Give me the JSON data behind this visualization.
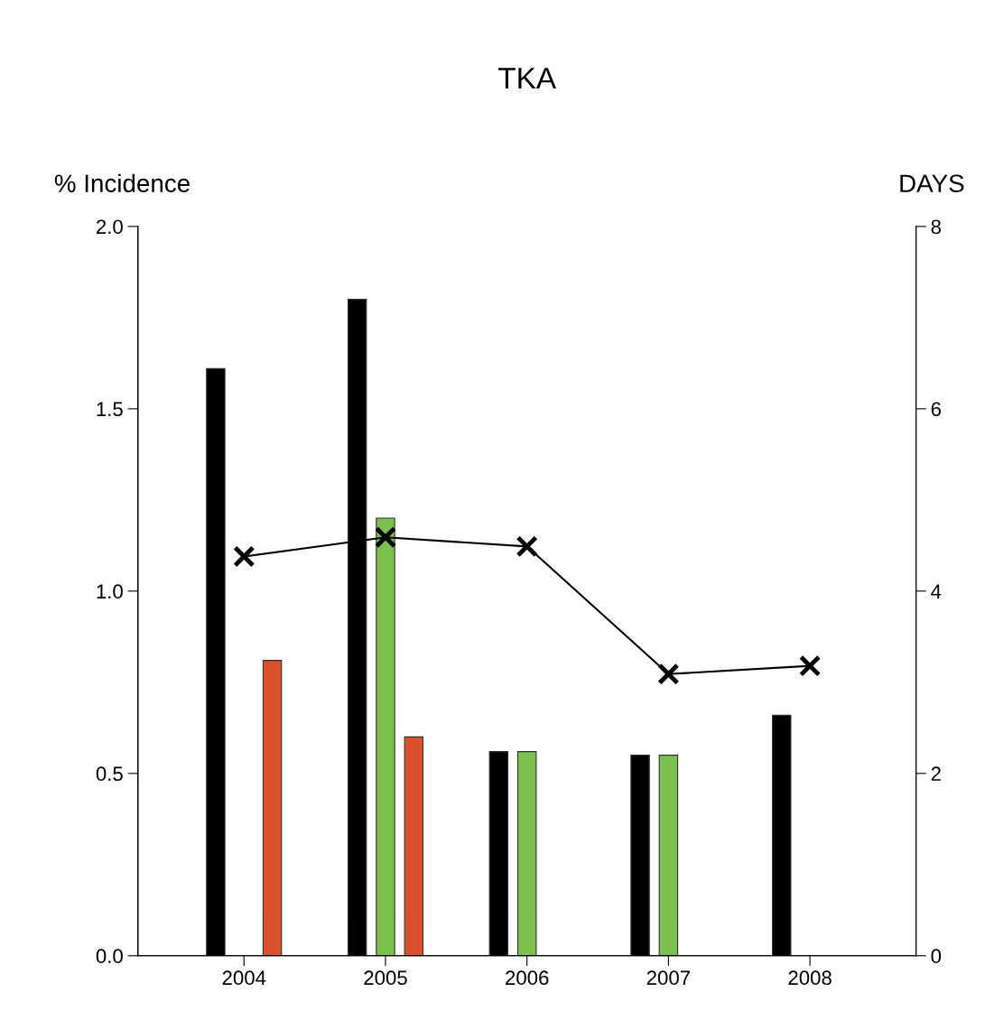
{
  "chart_data": {
    "type": "bar",
    "title": "TKA",
    "ylabel": "% Incidence",
    "y2label": "DAYS",
    "categories": [
      "2004",
      "2005",
      "2006",
      "2007",
      "2008"
    ],
    "series": [
      {
        "color": "#000000",
        "values": [
          1.61,
          1.8,
          0.56,
          0.55,
          0.66
        ]
      },
      {
        "color": "#7cc14f",
        "values": [
          null,
          1.2,
          0.56,
          0.55,
          null
        ]
      },
      {
        "color": "#d9512c",
        "values": [
          0.81,
          0.6,
          null,
          null,
          null
        ]
      },
      {
        "type": "line",
        "axis": "y2",
        "color": "#000000",
        "marker": "cross",
        "values": [
          4.38,
          4.59,
          4.49,
          3.09,
          3.18
        ]
      }
    ],
    "ylim": [
      0,
      2
    ],
    "yticks": [
      {
        "value": 0,
        "label": "0.0"
      },
      0.5,
      {
        "value": 1,
        "label": "1.0"
      },
      1.5,
      {
        "value": 2,
        "label": "2.0"
      }
    ],
    "y2lim": [
      0,
      8
    ],
    "y2ticks": [
      0,
      2,
      4,
      6,
      8
    ],
    "grid": false,
    "legend": false
  }
}
